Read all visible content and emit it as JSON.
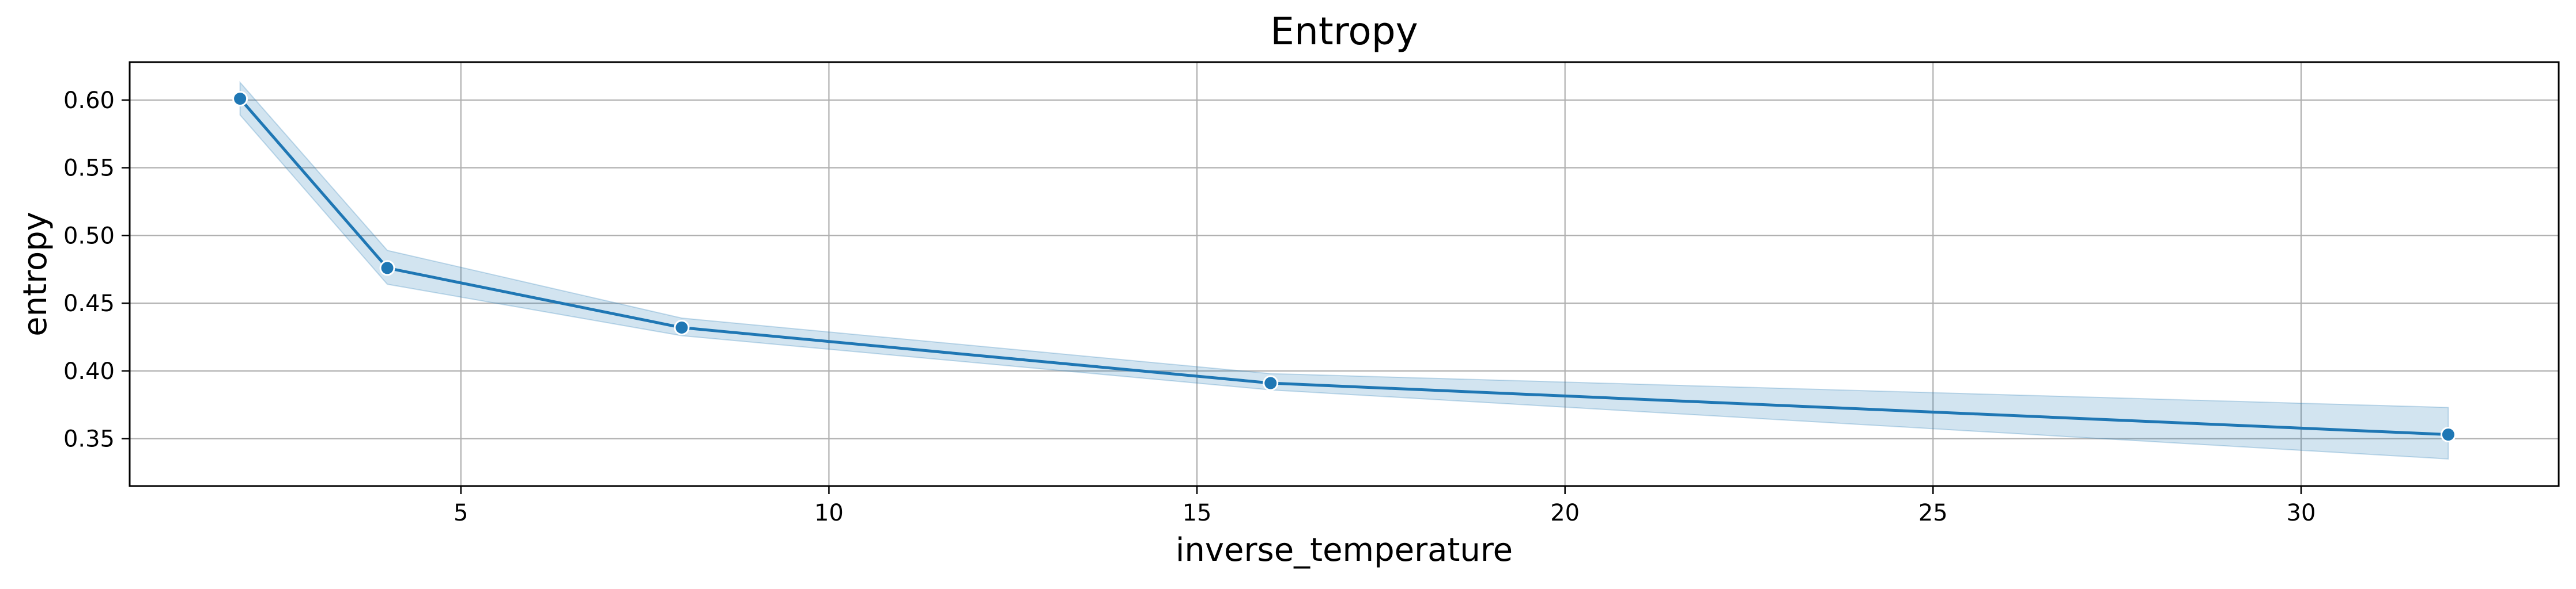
{
  "chart_data": {
    "type": "line",
    "title": "Entropy",
    "xlabel": "inverse_temperature",
    "ylabel": "entropy",
    "xlim": [
      0.5,
      33.5
    ],
    "ylim": [
      0.315,
      0.628
    ],
    "xticks": [
      5,
      10,
      15,
      20,
      25,
      30
    ],
    "yticks": [
      0.35,
      0.4,
      0.45,
      0.5,
      0.55,
      0.6
    ],
    "xtick_labels": [
      "5",
      "10",
      "15",
      "20",
      "25",
      "30"
    ],
    "ytick_labels": [
      "0.35",
      "0.40",
      "0.45",
      "0.50",
      "0.55",
      "0.60"
    ],
    "grid": true,
    "legend": "none",
    "series": [
      {
        "x": [
          2,
          4,
          8,
          16,
          32
        ],
        "y": [
          0.601,
          0.476,
          0.432,
          0.391,
          0.353
        ],
        "ci_lower": [
          0.589,
          0.464,
          0.426,
          0.386,
          0.335
        ],
        "ci_upper": [
          0.613,
          0.489,
          0.439,
          0.398,
          0.373
        ],
        "marker": "circle"
      }
    ],
    "colors": {
      "line": "#1f77b4",
      "band": "#1f77b4",
      "marker_edge": "#ffffff",
      "grid": "#b0b0b0",
      "axes": "#000000"
    }
  }
}
